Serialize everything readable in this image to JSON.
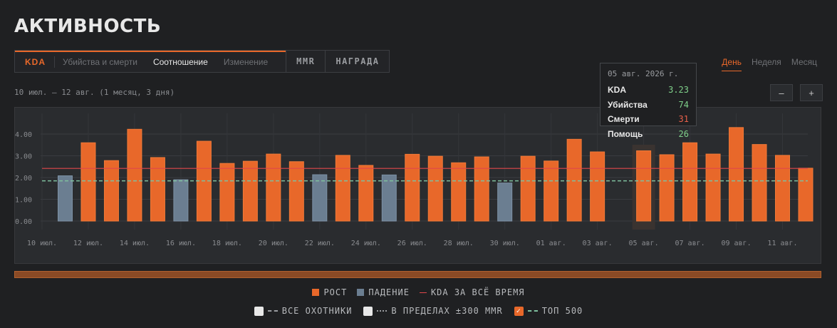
{
  "page_title": "АКТИВНОСТЬ",
  "tabs": {
    "kda": "KDA",
    "kills_deaths": "Убийства и смерти",
    "ratio": "Соотношение",
    "change": "Изменение",
    "mmr": "MMR",
    "reward": "НАГРАДА"
  },
  "period": {
    "day": "День",
    "week": "Неделя",
    "month": "Месяц"
  },
  "date_range": "10 июл. – 12 авг. (1 месяц, 3 дня)",
  "zoom": {
    "minus": "–",
    "plus": "+"
  },
  "tooltip": {
    "date": "05 авг. 2026 г.",
    "kda_label": "KDA",
    "kda_value": "3.23",
    "kills_label": "Убийства",
    "kills_value": "74",
    "deaths_label": "Смерти",
    "deaths_value": "31",
    "assists_label": "Помощь",
    "assists_value": "26"
  },
  "colors": {
    "rise": "#e8682a",
    "fall": "#6b7e91",
    "all_time": "#e0474a",
    "top500": "#7fbf9e",
    "kda_tt": "#7fd08a",
    "kills_tt": "#7fd08a",
    "deaths_tt": "#e8604a",
    "assists_tt": "#7fd08a"
  },
  "legend": {
    "rise": "РОСТ",
    "fall": "ПАДЕНИЕ",
    "all_time": "KDA ЗА ВСЁ ВРЕМЯ",
    "all_hunters": "ВСЕ ОХОТНИКИ",
    "within_mmr": "В ПРЕДЕЛАХ ±300 MMR",
    "top500": "ТОП 500"
  },
  "chart_data": {
    "type": "bar",
    "ylim": [
      0,
      4.4
    ],
    "yticks": [
      "0.00",
      "1.00",
      "2.00",
      "3.00",
      "4.00"
    ],
    "xticks": [
      "10 июл.",
      "12 июл.",
      "14 июл.",
      "16 июл.",
      "18 июл.",
      "20 июл.",
      "22 июл.",
      "24 июл.",
      "26 июл.",
      "28 июл.",
      "30 июл.",
      "01 авг.",
      "03 авг.",
      "05 авг.",
      "07 авг.",
      "09 авг.",
      "11 авг."
    ],
    "dates": [
      "10 июл.",
      "11 июл.",
      "12 июл.",
      "13 июл.",
      "14 июл.",
      "15 июл.",
      "16 июл.",
      "17 июл.",
      "18 июл.",
      "19 июл.",
      "20 июл.",
      "21 июл.",
      "22 июл.",
      "23 июл.",
      "24 июл.",
      "25 июл.",
      "26 июл.",
      "27 июл.",
      "28 июл.",
      "29 июл.",
      "30 июл.",
      "31 июл.",
      "01 авг.",
      "02 авг.",
      "03 авг.",
      "04 авг.",
      "05 авг.",
      "06 авг.",
      "07 авг.",
      "08 авг.",
      "09 авг.",
      "10 авг.",
      "11 авг.",
      "12 авг."
    ],
    "values": [
      null,
      2.08,
      3.6,
      2.78,
      4.22,
      2.92,
      1.9,
      3.67,
      2.65,
      2.75,
      3.08,
      2.73,
      2.13,
      3.02,
      2.56,
      2.12,
      3.07,
      2.98,
      2.68,
      2.95,
      1.75,
      2.98,
      2.76,
      3.76,
      3.18,
      null,
      3.23,
      3.05,
      3.6,
      3.08,
      4.3,
      3.52,
      3.02,
      2.43
    ],
    "trend": [
      null,
      "fall",
      "rise",
      "rise",
      "rise",
      "rise",
      "fall",
      "rise",
      "rise",
      "rise",
      "rise",
      "rise",
      "fall",
      "rise",
      "rise",
      "fall",
      "rise",
      "rise",
      "rise",
      "rise",
      "fall",
      "rise",
      "rise",
      "rise",
      "rise",
      null,
      "rise",
      "rise",
      "rise",
      "rise",
      "rise",
      "rise",
      "rise",
      "rise"
    ],
    "all_time_kda": 2.42,
    "top500_kda": 1.85,
    "highlight_index": 26
  }
}
